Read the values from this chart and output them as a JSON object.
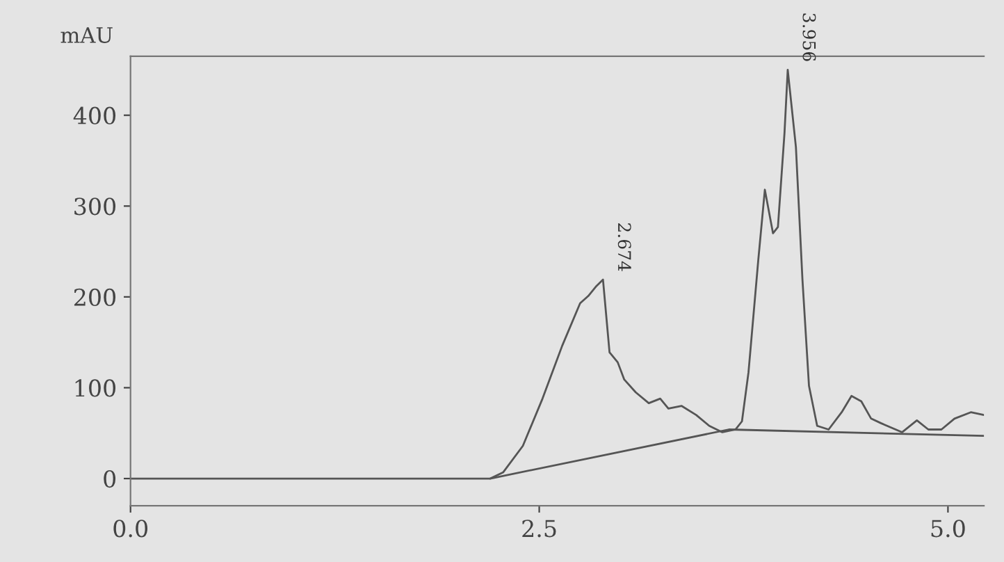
{
  "chart_data": {
    "type": "line",
    "ylabel": "mAU",
    "xlim": [
      0,
      5.22
    ],
    "ylim": [
      -30,
      465
    ],
    "xticks": [
      {
        "value": 0,
        "label": "0.0"
      },
      {
        "value": 2.5,
        "label": "2.5"
      },
      {
        "value": 5,
        "label": "5.0"
      }
    ],
    "yticks": [
      0,
      100,
      200,
      300,
      400
    ],
    "grid": false,
    "legend": false,
    "series": [
      {
        "color": "#555555",
        "x": [
          0,
          2.2,
          2.28,
          2.4,
          2.52,
          2.64,
          2.75,
          2.8,
          2.85,
          2.89,
          2.93,
          2.98,
          3.02,
          3.09,
          3.17,
          3.24,
          3.29,
          3.37,
          3.46,
          3.54,
          3.62,
          3.7,
          3.74,
          3.78,
          3.84,
          3.88,
          3.93,
          3.96,
          4.0,
          4.02,
          4.07,
          4.11,
          4.15,
          4.2,
          4.27,
          4.35,
          4.41,
          4.47,
          4.53,
          4.59,
          4.72,
          4.81,
          4.88,
          4.96,
          5.04,
          5.14,
          5.22
        ],
        "values": [
          0,
          0,
          7,
          36,
          88,
          146,
          193,
          201,
          212,
          219,
          139,
          128,
          109,
          95,
          83,
          88,
          77,
          80,
          70,
          58,
          51,
          54,
          63,
          117,
          241,
          318,
          270,
          277,
          380,
          450,
          365,
          219,
          102,
          58,
          54,
          73,
          91,
          85,
          66,
          61,
          51,
          64,
          54,
          54,
          66,
          73,
          70
        ]
      },
      {
        "color": "#555555",
        "x": [
          2.2,
          3.66,
          5.22
        ],
        "values": [
          0,
          54,
          47
        ]
      }
    ],
    "annotations": [
      {
        "text": "2.674",
        "x": 2.89,
        "y": 219
      },
      {
        "text": "3.956",
        "x": 4.02,
        "y": 450
      }
    ]
  }
}
